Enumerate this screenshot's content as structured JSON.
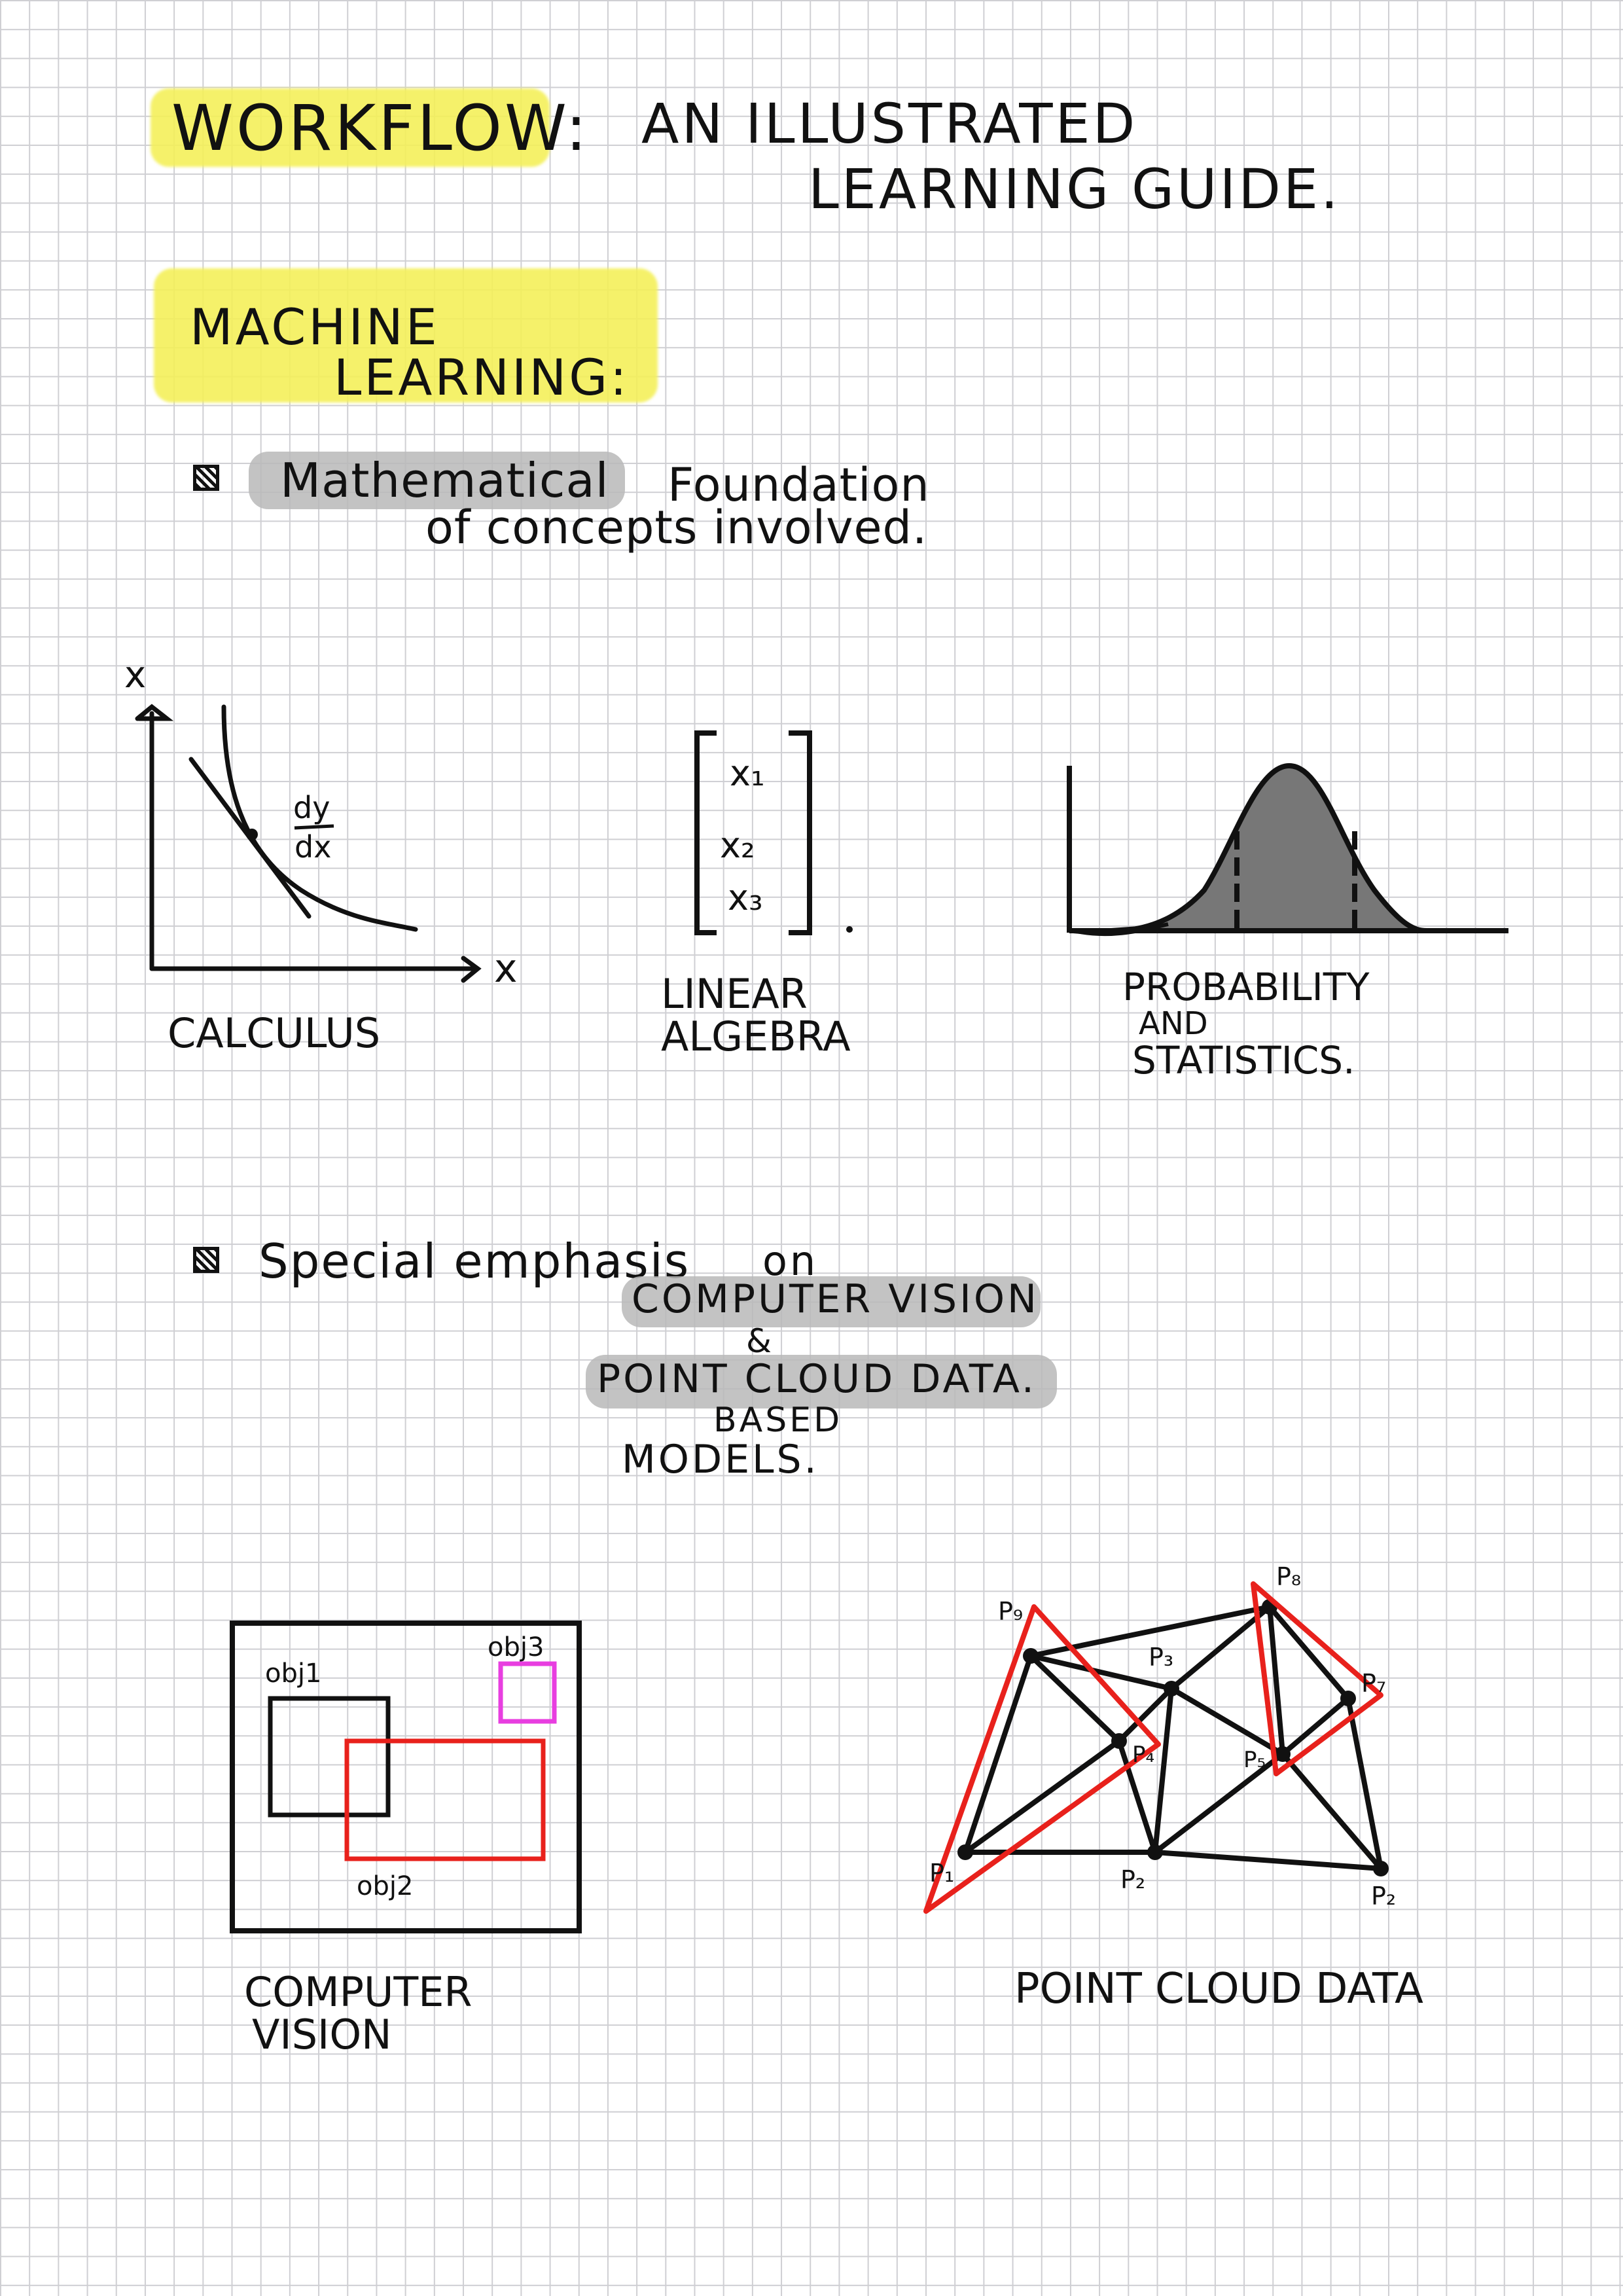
{
  "title": {
    "part1": "WORKFLOW:",
    "part2_line1": "AN ILLUSTRATED",
    "part2_line2": "LEARNING GUIDE."
  },
  "section": {
    "line1": "MACHINE",
    "line2": "LEARNING:"
  },
  "bullet1": {
    "highlight": "Mathematical",
    "rest_line1": "Foundation",
    "line2": "of concepts involved."
  },
  "figures_math": {
    "calculus": {
      "y_axis": "x",
      "x_axis": "x",
      "derivative_top": "dy",
      "derivative_bottom": "dx",
      "caption": "CALCULUS"
    },
    "linear_algebra": {
      "entries": [
        "x₁",
        "x₂",
        "x₃"
      ],
      "caption_line1": "LINEAR",
      "caption_line2": "ALGEBRA"
    },
    "probability": {
      "caption_line1": "PROBABILITY",
      "caption_line2": "AND",
      "caption_line3": "STATISTICS."
    }
  },
  "bullet2": {
    "lead": "Special emphasis",
    "on": "on",
    "topic1": "COMPUTER VISION",
    "amp": "&",
    "topic2": "POINT CLOUD DATA.",
    "based": "BASED",
    "models": "MODELS."
  },
  "figures_models": {
    "computer_vision": {
      "obj1": "obj1",
      "obj2": "obj2",
      "obj3": "obj3",
      "caption_line1": "COMPUTER",
      "caption_line2": "VISION"
    },
    "point_cloud": {
      "labels": [
        "P₉",
        "P₈",
        "P₃",
        "P₇",
        "P₄",
        "P₅",
        "P₁",
        "P₂",
        "P₂"
      ],
      "caption": "POINT CLOUD DATA"
    }
  },
  "colors": {
    "highlight_yellow": "#f4f05a",
    "highlight_grey": "#b9b9b9",
    "box_red": "#e8211c",
    "box_magenta": "#e83ee0",
    "curve_fill": "#777777"
  }
}
